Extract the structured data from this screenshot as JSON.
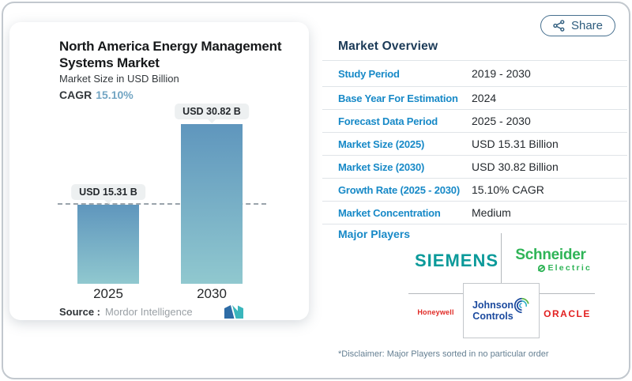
{
  "share": {
    "label": "Share"
  },
  "chart_card": {
    "title_line1": "North America Energy Management",
    "title_line2": "Systems Market",
    "subtitle": "Market Size in USD Billion",
    "cagr_label": "CAGR",
    "cagr_value": "15.10%",
    "source_label": "Source :",
    "source_value": "Mordor Intelligence"
  },
  "chart_data": {
    "type": "bar",
    "title": "North America Energy Management Systems Market",
    "ylabel": "Market Size in USD Billion",
    "categories": [
      "2025",
      "2030"
    ],
    "values": [
      15.31,
      30.82
    ],
    "bar_labels": [
      "USD 15.31 B",
      "USD 30.82 B"
    ],
    "cagr": "15.10%",
    "dashed_line_at": 15.31,
    "ylim": [
      0,
      32
    ],
    "bar_gradient_top": "#5f96bd",
    "bar_gradient_bottom": "#90c8cf"
  },
  "overview": {
    "heading": "Market Overview",
    "rows": [
      {
        "label": "Study Period",
        "value": "2019 - 2030"
      },
      {
        "label": "Base Year For Estimation",
        "value": "2024"
      },
      {
        "label": "Forecast Data Period",
        "value": "2025 - 2030"
      },
      {
        "label": "Market Size (2025)",
        "value": "USD 15.31 Billion"
      },
      {
        "label": "Market Size (2030)",
        "value": "USD 30.82 Billion"
      },
      {
        "label": "Growth Rate (2025 - 2030)",
        "value": "15.10% CAGR"
      },
      {
        "label": "Market Concentration",
        "value": "Medium"
      }
    ],
    "major_players_label": "Major Players",
    "players": {
      "siemens": "SIEMENS",
      "schneider_line1": "Schneider",
      "schneider_line2": "Electric",
      "honeywell": "Honeywell",
      "jc_line1": "Johnson",
      "jc_line2": "Controls",
      "oracle": "ORACLE"
    },
    "disclaimer": "*Disclaimer: Major Players sorted in no particular order"
  },
  "colors": {
    "table_label_blue": "#1789c7",
    "heading_navy": "#1b3a57",
    "cagr_blue": "#72a5c3",
    "bar_top": "#5f96bd",
    "bar_bottom": "#90c8cf",
    "siemens_teal": "#0b9a9a",
    "schneider_green": "#2fb457",
    "honeywell_red": "#e02a25",
    "oracle_red": "#e21f1f",
    "johnson_controls_blue": "#1b4a9e",
    "share_button_blue": "#2e5c7d"
  }
}
